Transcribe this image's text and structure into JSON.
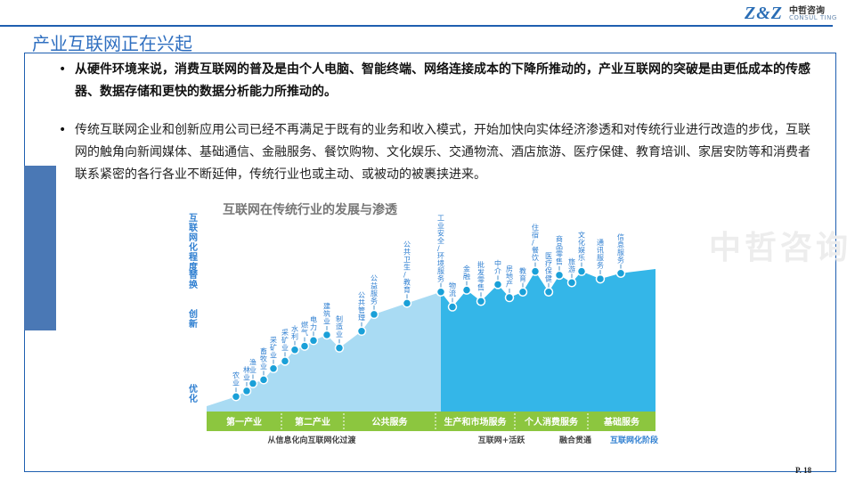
{
  "header": {
    "logo_mark": "Z&Z",
    "logo_cn": "中哲咨询",
    "logo_en": "CONSUL TING",
    "accent": "#1f5fb0"
  },
  "slide": {
    "title": "产业互联网正在兴起",
    "bullet_1": "从硬件环境来说，消费互联网的普及是由个人电脑、智能终端、网络连接成本的下降所推动的，产业互联网的突破是由更低成本的传感器、数据存储和更快的数据分析能力所推动的。",
    "bullet_2": "传统互联网企业和创新应用公司已经不再满足于既有的业务和收入模式，开始加快向实体经济渗透和对传统行业进行改造的步伐，互联网的触角向新闻媒体、基础通信、金融服务、餐饮购物、文化娱乐、交通物流、酒店旅游、医疗保健、教育培训、家居安防等和消费者联系紧密的各行各业不断延伸，传统行业也或主动、或被动的被裹挟进来。",
    "watermark": "中哲咨询",
    "page_number": "P. 18"
  },
  "chart": {
    "title": "互联网在传统行业的发展与渗透",
    "y_axis_title": "互联网化程度",
    "y_levels": [
      "替换",
      "创新",
      "优化"
    ],
    "sectors": [
      "第一产业",
      "第二产业",
      "公共服务",
      "生产和市场服务",
      "个人消费服务",
      "基础服务"
    ],
    "bottom_labels": [
      "从信息化向互联网化过渡",
      "互联网+活跃",
      "融合贯通",
      "互联网化阶段"
    ],
    "colors": {
      "light_area": "#a9dbf3",
      "dark_area": "#34b6e8",
      "band": "#8cc63f",
      "point": "#1aa0d8",
      "label": "#2f7fd1"
    }
  },
  "chart_data": {
    "type": "area",
    "title": "互联网在传统行业的发展与渗透",
    "ylabel": "互联网化程度",
    "y_ticks": [
      "优化",
      "创新",
      "替换"
    ],
    "points": [
      {
        "label": "农业",
        "y": 0.08
      },
      {
        "label": "林业",
        "y": 0.11
      },
      {
        "label": "渔业",
        "y": 0.15
      },
      {
        "label": "畜牧业",
        "y": 0.17
      },
      {
        "label": "采矿业",
        "y": 0.23
      },
      {
        "label": "采矿业",
        "y": 0.27
      },
      {
        "label": "水利",
        "y": 0.33
      },
      {
        "label": "燃气",
        "y": 0.35
      },
      {
        "label": "电力",
        "y": 0.38
      },
      {
        "label": "建筑业",
        "y": 0.41
      },
      {
        "label": "制造业",
        "y": 0.34
      },
      {
        "label": "公共管理",
        "y": 0.43
      },
      {
        "label": "公益服务",
        "y": 0.52
      },
      {
        "label": "公共卫生/教育",
        "y": 0.58
      },
      {
        "label": "工业安全/环境服务",
        "y": 0.64
      },
      {
        "label": "物流",
        "y": 0.56
      },
      {
        "label": "金融",
        "y": 0.65
      },
      {
        "label": "批发零售",
        "y": 0.59
      },
      {
        "label": "中介",
        "y": 0.68
      },
      {
        "label": "房地产",
        "y": 0.61
      },
      {
        "label": "教育",
        "y": 0.64
      },
      {
        "label": "住宿/餐饮",
        "y": 0.75
      },
      {
        "label": "医疗保健",
        "y": 0.64
      },
      {
        "label": "商品零售",
        "y": 0.73
      },
      {
        "label": "旅游",
        "y": 0.69
      },
      {
        "label": "文化娱乐",
        "y": 0.75
      },
      {
        "label": "通讯服务",
        "y": 0.71
      },
      {
        "label": "信息服务",
        "y": 0.74
      }
    ]
  }
}
